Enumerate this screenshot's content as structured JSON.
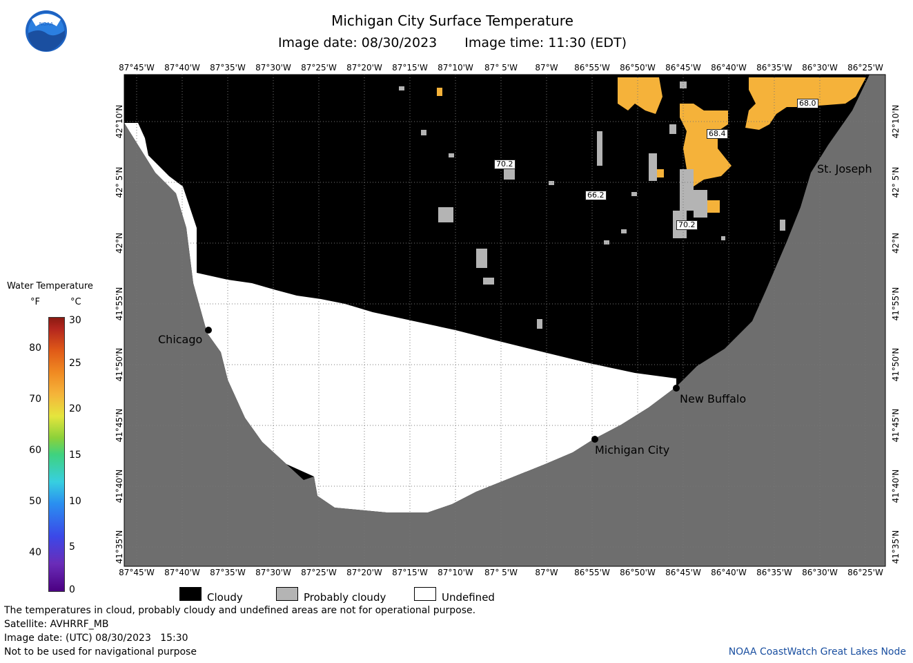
{
  "title": "Michigan City Surface Temperature",
  "image_date": "Image date: 08/30/2023",
  "image_time": "Image time: 11:30 (EDT)",
  "logo_text": "NOAA",
  "longitude_labels": [
    "87°45'W",
    "87°40'W",
    "87°35'W",
    "87°30'W",
    "87°25'W",
    "87°20'W",
    "87°15'W",
    "87°10'W",
    "87° 5'W",
    "87°W",
    "86°55'W",
    "86°50'W",
    "86°45'W",
    "86°40'W",
    "86°35'W",
    "86°30'W",
    "86°25'W"
  ],
  "latitude_labels": [
    "42°10'N",
    "42° 5'N",
    "42°N",
    "41°55'N",
    "41°50'N",
    "41°45'N",
    "41°40'N",
    "41°35'N"
  ],
  "places": {
    "chicago": "Chicago",
    "new_buffalo": "New Buffalo",
    "michigan_city": "Michigan City",
    "st_joseph": "St. Joseph"
  },
  "temperature_labels": [
    "70.2",
    "66.2",
    "68.4",
    "68.0",
    "70.2"
  ],
  "legend": {
    "title": "Water Temperature",
    "unit_f": "°F",
    "unit_c": "°C",
    "f_ticks": [
      "80",
      "70",
      "60",
      "50",
      "40"
    ],
    "c_ticks": [
      "30",
      "25",
      "20",
      "15",
      "10",
      "5",
      "0"
    ]
  },
  "key": {
    "cloudy": "Cloudy",
    "probably_cloudy": "Probably cloudy",
    "undefined": "Undefined"
  },
  "colors": {
    "cloudy": "#000000",
    "probably_cloudy": "#b4b4b4",
    "undefined": "#ffffff",
    "land": "#6e6e6e",
    "warm_water": "#f5b23a"
  },
  "footer": {
    "line1": "The temperatures in cloud, probably cloudy and undefined areas are not for operational purpose.",
    "line2": "Satellite: AVHRRF_MB",
    "line3": "Image date: (UTC) 08/30/2023   15:30",
    "line4": "Not to be used for navigational purpose"
  },
  "credit": "NOAA CoastWatch Great Lakes Node"
}
